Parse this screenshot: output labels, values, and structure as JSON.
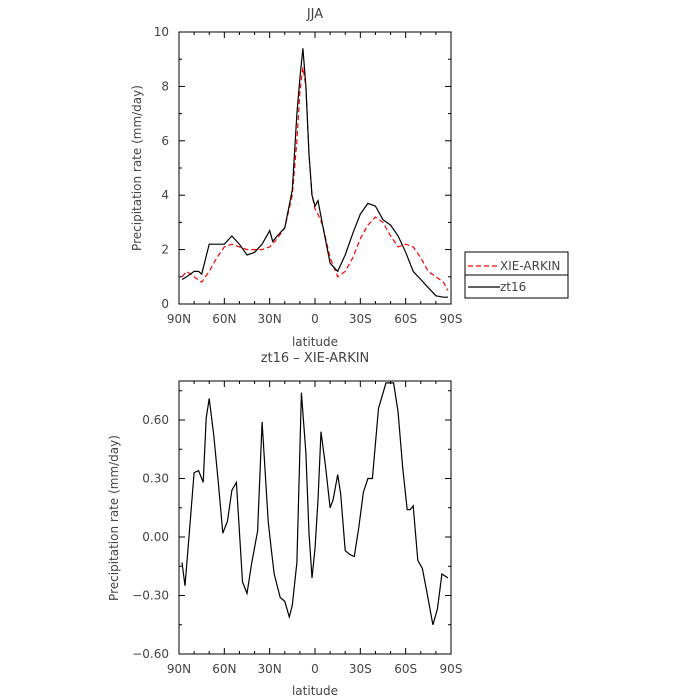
{
  "chart_data": [
    {
      "type": "line",
      "title": "JJA",
      "xlabel": "latitude",
      "ylabel": "Precipitation rate (mm/day)",
      "xlim": [
        90,
        -90
      ],
      "ylim": [
        0,
        10
      ],
      "xticks": [
        90,
        60,
        30,
        0,
        -30,
        -60,
        -90
      ],
      "xtick_labels": [
        "90N",
        "60N",
        "30N",
        "0",
        "30S",
        "60S",
        "90S"
      ],
      "yticks": [
        0,
        2,
        4,
        6,
        8,
        10
      ],
      "ytick_labels": [
        "0",
        "2",
        "4",
        "6",
        "8",
        "10"
      ],
      "legend_position": "outside-right",
      "series": [
        {
          "name": "XIE-ARKIN",
          "color": "#ff0000",
          "dash": "dashed",
          "x": [
            88,
            85,
            80,
            75,
            70,
            65,
            60,
            55,
            50,
            45,
            40,
            35,
            30,
            25,
            20,
            15,
            12,
            10,
            8,
            6,
            4,
            2,
            0,
            -2,
            -5,
            -10,
            -15,
            -20,
            -25,
            -30,
            -35,
            -40,
            -45,
            -50,
            -55,
            -60,
            -65,
            -70,
            -75,
            -80,
            -85,
            -88
          ],
          "y": [
            1.0,
            1.2,
            1.0,
            0.8,
            1.2,
            1.7,
            2.1,
            2.2,
            2.1,
            2.0,
            2.0,
            2.0,
            2.1,
            2.4,
            2.8,
            4.0,
            6.0,
            7.8,
            8.7,
            8.0,
            5.5,
            4.0,
            3.5,
            3.3,
            2.9,
            1.7,
            1.0,
            1.2,
            1.7,
            2.4,
            2.9,
            3.2,
            3.0,
            2.5,
            2.1,
            2.2,
            2.1,
            1.7,
            1.2,
            1.0,
            0.8,
            0.5
          ]
        },
        {
          "name": "zt16",
          "color": "#000000",
          "dash": "solid",
          "x": [
            88,
            85,
            80,
            77,
            75,
            70,
            65,
            60,
            55,
            50,
            45,
            40,
            35,
            30,
            28,
            25,
            20,
            15,
            12,
            10,
            8,
            6,
            4,
            2,
            0,
            -2,
            -5,
            -10,
            -15,
            -20,
            -25,
            -30,
            -35,
            -40,
            -45,
            -50,
            -55,
            -60,
            -65,
            -70,
            -75,
            -80,
            -85,
            -88
          ],
          "y": [
            0.9,
            1.0,
            1.2,
            1.2,
            1.1,
            2.2,
            2.2,
            2.2,
            2.5,
            2.2,
            1.8,
            1.9,
            2.2,
            2.7,
            2.3,
            2.5,
            2.8,
            4.2,
            7.0,
            8.3,
            9.4,
            8.0,
            5.5,
            4.0,
            3.6,
            3.8,
            2.9,
            1.5,
            1.2,
            1.8,
            2.6,
            3.3,
            3.7,
            3.6,
            3.1,
            2.9,
            2.5,
            1.9,
            1.2,
            0.9,
            0.6,
            0.3,
            0.25,
            0.25
          ]
        }
      ]
    },
    {
      "type": "line",
      "title": "zt16 – XIE-ARKIN",
      "xlabel": "latitude",
      "ylabel": "Precipitation rate (mm/day)",
      "xlim": [
        90,
        -90
      ],
      "ylim": [
        -0.6,
        0.8
      ],
      "xticks": [
        90,
        60,
        30,
        0,
        -30,
        -60,
        -90
      ],
      "xtick_labels": [
        "90N",
        "60N",
        "30N",
        "0",
        "30S",
        "60S",
        "90S"
      ],
      "yticks": [
        -0.6,
        -0.3,
        0.0,
        0.3,
        0.6
      ],
      "ytick_labels": [
        "−0.60",
        "−0.30",
        "0.00",
        "0.30",
        "0.60"
      ],
      "series": [
        {
          "color": "#000000",
          "dash": "solid",
          "x": [
            88,
            86,
            83,
            80,
            77,
            74,
            72,
            70,
            67,
            64,
            61,
            58,
            55,
            52,
            48,
            45,
            42,
            38,
            35,
            31,
            29,
            27,
            23,
            20,
            17,
            15,
            12,
            9,
            6,
            4,
            2,
            0,
            -2,
            -4,
            -7,
            -10,
            -12,
            -15,
            -17,
            -20,
            -23,
            -26,
            -29,
            -32,
            -35,
            -38,
            -42,
            -47,
            -52,
            -55,
            -58,
            -61,
            -63,
            -65,
            -68,
            -71,
            -74,
            -78,
            -81,
            -84,
            -86,
            -88
          ],
          "y": [
            -0.13,
            -0.25,
            0.04,
            0.33,
            0.34,
            0.28,
            0.61,
            0.71,
            0.52,
            0.28,
            0.02,
            0.08,
            0.24,
            0.28,
            -0.23,
            -0.29,
            -0.14,
            0.03,
            0.59,
            0.08,
            -0.06,
            -0.19,
            -0.31,
            -0.33,
            -0.41,
            -0.35,
            -0.13,
            0.74,
            0.43,
            0.02,
            -0.21,
            -0.06,
            0.19,
            0.54,
            0.36,
            0.15,
            0.19,
            0.32,
            0.22,
            -0.07,
            -0.09,
            -0.1,
            0.05,
            0.23,
            0.3,
            0.3,
            0.66,
            0.79,
            0.79,
            0.64,
            0.36,
            0.14,
            0.14,
            0.16,
            -0.12,
            -0.16,
            -0.28,
            -0.45,
            -0.37,
            -0.19,
            -0.2,
            -0.21
          ]
        }
      ]
    }
  ]
}
